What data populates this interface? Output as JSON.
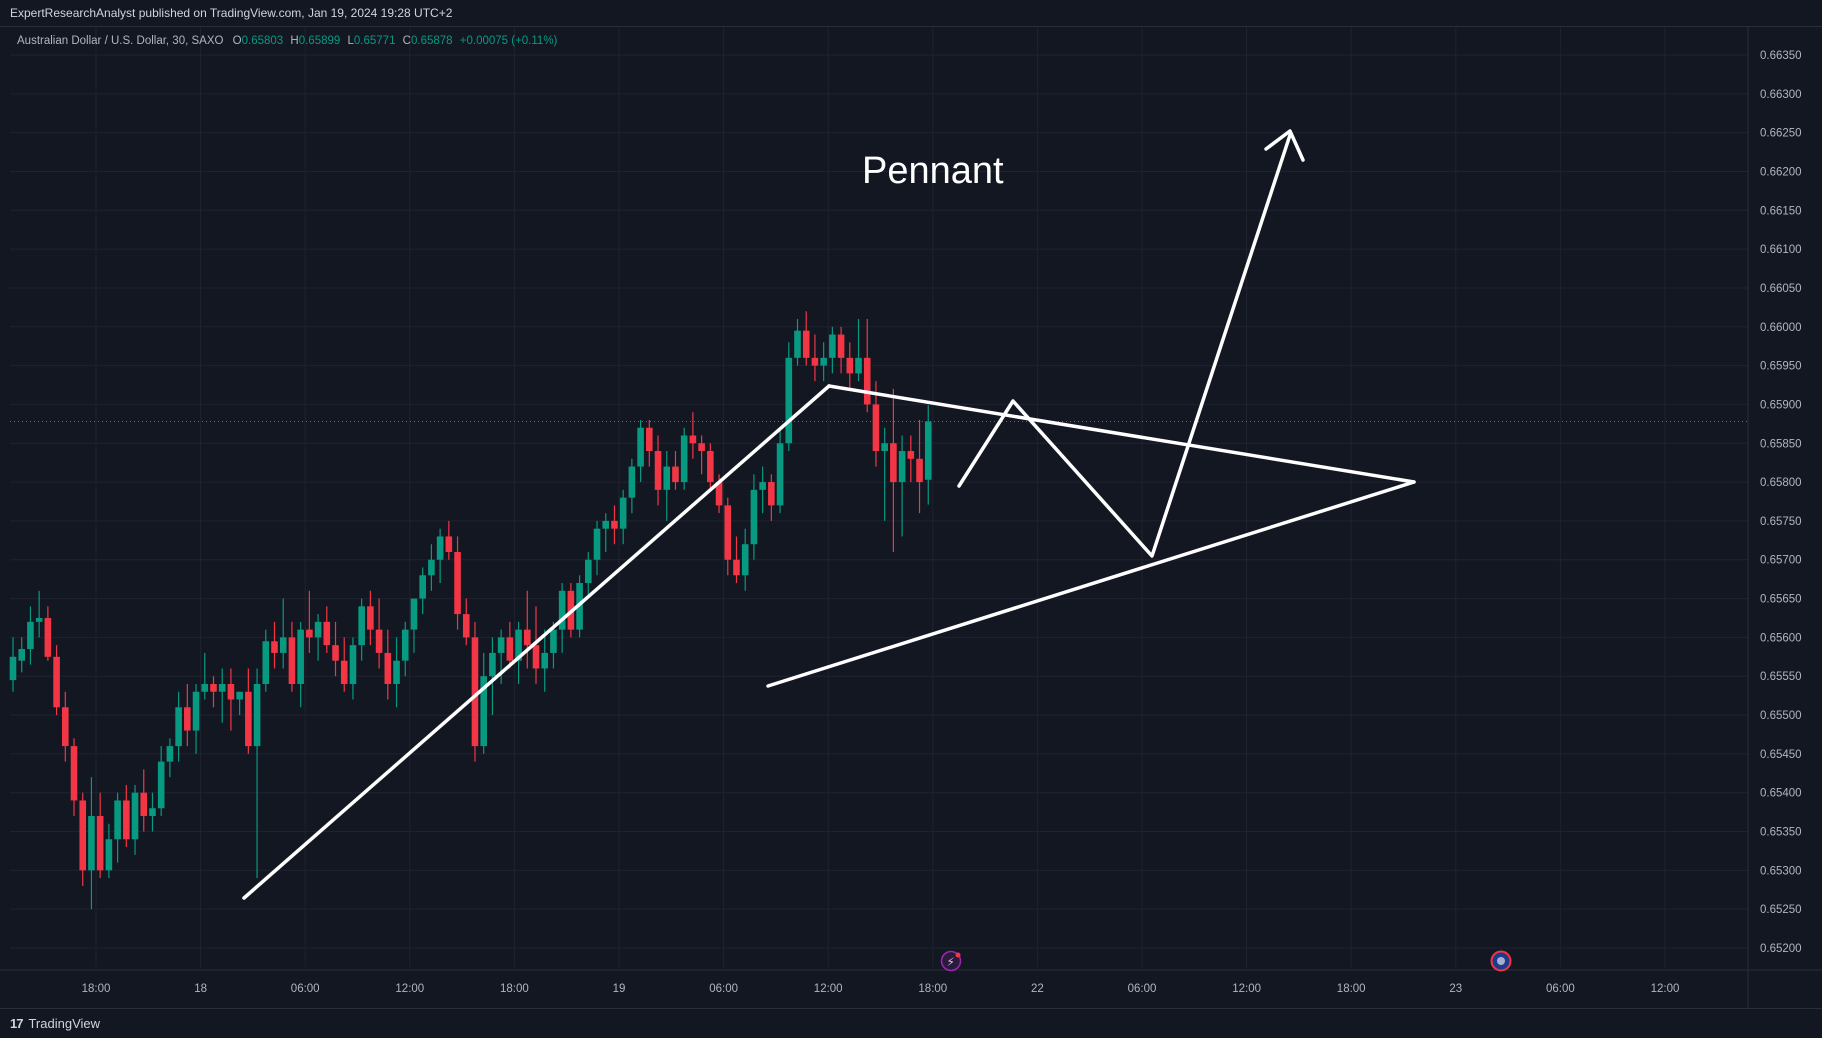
{
  "header": {
    "publisher_line": "ExpertResearchAnalyst published on TradingView.com, Jan 19, 2024 19:28 UTC+2"
  },
  "legend": {
    "symbol": "Australian Dollar / U.S. Dollar, 30, SAXO",
    "o_label": "O",
    "o_value": "0.65803",
    "h_label": "H",
    "h_value": "0.65899",
    "l_label": "L",
    "l_value": "0.65771",
    "c_label": "C",
    "c_value": "0.65878",
    "change": "+0.00075 (+0.11%)"
  },
  "annotation": {
    "text": "Pennant"
  },
  "footer": {
    "brand": "TradingView",
    "logo_glyph": "17"
  },
  "colors": {
    "background": "#131722",
    "up": "#089981",
    "down": "#f23645",
    "grid": "#1f2330",
    "axis_text": "#b2b5be",
    "drawing": "#ffffff",
    "price_line": "#089981"
  },
  "chart_data": {
    "type": "candlestick",
    "title": "",
    "ylim": [
      0.6517,
      0.6637
    ],
    "y_ticks": [
      "0.66350",
      "0.66300",
      "0.66250",
      "0.66200",
      "0.66150",
      "0.66100",
      "0.66050",
      "0.66000",
      "0.65950",
      "0.65900",
      "0.65850",
      "0.65800",
      "0.65750",
      "0.65700",
      "0.65650",
      "0.65600",
      "0.65550",
      "0.65500",
      "0.65450",
      "0.65400",
      "0.65350",
      "0.65300",
      "0.65250",
      "0.65200"
    ],
    "x_ticks": [
      "18:00",
      "18",
      "06:00",
      "12:00",
      "18:00",
      "19",
      "06:00",
      "12:00",
      "18:00",
      "22",
      "06:00",
      "12:00",
      "18:00",
      "23",
      "06:00",
      "12:00"
    ],
    "current_price": 0.65878,
    "grid": true,
    "candles": [
      {
        "o": 0.65545,
        "h": 0.656,
        "l": 0.6553,
        "c": 0.65575
      },
      {
        "o": 0.6557,
        "h": 0.656,
        "l": 0.65555,
        "c": 0.65585
      },
      {
        "o": 0.65585,
        "h": 0.6564,
        "l": 0.65565,
        "c": 0.6562
      },
      {
        "o": 0.6562,
        "h": 0.6566,
        "l": 0.656,
        "c": 0.65625
      },
      {
        "o": 0.65625,
        "h": 0.6564,
        "l": 0.6557,
        "c": 0.65575
      },
      {
        "o": 0.65575,
        "h": 0.6559,
        "l": 0.655,
        "c": 0.6551
      },
      {
        "o": 0.6551,
        "h": 0.6553,
        "l": 0.6544,
        "c": 0.6546
      },
      {
        "o": 0.6546,
        "h": 0.6547,
        "l": 0.6537,
        "c": 0.6539
      },
      {
        "o": 0.6539,
        "h": 0.654,
        "l": 0.6528,
        "c": 0.653
      },
      {
        "o": 0.653,
        "h": 0.6542,
        "l": 0.6525,
        "c": 0.6537
      },
      {
        "o": 0.6537,
        "h": 0.654,
        "l": 0.6529,
        "c": 0.653
      },
      {
        "o": 0.653,
        "h": 0.6536,
        "l": 0.6529,
        "c": 0.6534
      },
      {
        "o": 0.6534,
        "h": 0.654,
        "l": 0.6531,
        "c": 0.6539
      },
      {
        "o": 0.6539,
        "h": 0.6541,
        "l": 0.6533,
        "c": 0.6534
      },
      {
        "o": 0.6534,
        "h": 0.6541,
        "l": 0.6532,
        "c": 0.654
      },
      {
        "o": 0.654,
        "h": 0.6543,
        "l": 0.6535,
        "c": 0.6537
      },
      {
        "o": 0.6537,
        "h": 0.654,
        "l": 0.6535,
        "c": 0.6538
      },
      {
        "o": 0.6538,
        "h": 0.6546,
        "l": 0.6537,
        "c": 0.6544
      },
      {
        "o": 0.6544,
        "h": 0.6547,
        "l": 0.6542,
        "c": 0.6546
      },
      {
        "o": 0.6546,
        "h": 0.6553,
        "l": 0.6544,
        "c": 0.6551
      },
      {
        "o": 0.6551,
        "h": 0.6554,
        "l": 0.6546,
        "c": 0.6548
      },
      {
        "o": 0.6548,
        "h": 0.6554,
        "l": 0.6545,
        "c": 0.6553
      },
      {
        "o": 0.6553,
        "h": 0.6558,
        "l": 0.6552,
        "c": 0.6554
      },
      {
        "o": 0.6554,
        "h": 0.6555,
        "l": 0.6551,
        "c": 0.6553
      },
      {
        "o": 0.6553,
        "h": 0.6556,
        "l": 0.6549,
        "c": 0.6554
      },
      {
        "o": 0.6554,
        "h": 0.6556,
        "l": 0.6548,
        "c": 0.6552
      },
      {
        "o": 0.6552,
        "h": 0.6553,
        "l": 0.655,
        "c": 0.6553
      },
      {
        "o": 0.6553,
        "h": 0.6556,
        "l": 0.6545,
        "c": 0.6546
      },
      {
        "o": 0.6546,
        "h": 0.6556,
        "l": 0.6529,
        "c": 0.6554
      },
      {
        "o": 0.6554,
        "h": 0.6561,
        "l": 0.6553,
        "c": 0.65595
      },
      {
        "o": 0.65595,
        "h": 0.6562,
        "l": 0.6556,
        "c": 0.6558
      },
      {
        "o": 0.6558,
        "h": 0.6565,
        "l": 0.6556,
        "c": 0.656
      },
      {
        "o": 0.656,
        "h": 0.6562,
        "l": 0.6553,
        "c": 0.6554
      },
      {
        "o": 0.6554,
        "h": 0.6562,
        "l": 0.6551,
        "c": 0.6561
      },
      {
        "o": 0.6561,
        "h": 0.6566,
        "l": 0.6558,
        "c": 0.656
      },
      {
        "o": 0.656,
        "h": 0.6563,
        "l": 0.6557,
        "c": 0.6562
      },
      {
        "o": 0.6562,
        "h": 0.6564,
        "l": 0.6558,
        "c": 0.6559
      },
      {
        "o": 0.6559,
        "h": 0.6562,
        "l": 0.6555,
        "c": 0.6557
      },
      {
        "o": 0.6557,
        "h": 0.656,
        "l": 0.6553,
        "c": 0.6554
      },
      {
        "o": 0.6554,
        "h": 0.656,
        "l": 0.6552,
        "c": 0.6559
      },
      {
        "o": 0.6559,
        "h": 0.6565,
        "l": 0.6557,
        "c": 0.6564
      },
      {
        "o": 0.6564,
        "h": 0.6566,
        "l": 0.6559,
        "c": 0.6561
      },
      {
        "o": 0.6561,
        "h": 0.6565,
        "l": 0.6556,
        "c": 0.6558
      },
      {
        "o": 0.6558,
        "h": 0.6561,
        "l": 0.6552,
        "c": 0.6554
      },
      {
        "o": 0.6554,
        "h": 0.656,
        "l": 0.6551,
        "c": 0.6557
      },
      {
        "o": 0.6557,
        "h": 0.6562,
        "l": 0.6555,
        "c": 0.6561
      },
      {
        "o": 0.6561,
        "h": 0.6565,
        "l": 0.6558,
        "c": 0.6565
      },
      {
        "o": 0.6565,
        "h": 0.6569,
        "l": 0.6563,
        "c": 0.6568
      },
      {
        "o": 0.6568,
        "h": 0.6572,
        "l": 0.6566,
        "c": 0.657
      },
      {
        "o": 0.657,
        "h": 0.6574,
        "l": 0.6567,
        "c": 0.6573
      },
      {
        "o": 0.6573,
        "h": 0.6575,
        "l": 0.657,
        "c": 0.6571
      },
      {
        "o": 0.6571,
        "h": 0.6573,
        "l": 0.6561,
        "c": 0.6563
      },
      {
        "o": 0.6563,
        "h": 0.6565,
        "l": 0.6559,
        "c": 0.656
      },
      {
        "o": 0.656,
        "h": 0.6562,
        "l": 0.6544,
        "c": 0.6546
      },
      {
        "o": 0.6546,
        "h": 0.6558,
        "l": 0.6545,
        "c": 0.6555
      },
      {
        "o": 0.6555,
        "h": 0.656,
        "l": 0.655,
        "c": 0.6558
      },
      {
        "o": 0.6558,
        "h": 0.6561,
        "l": 0.6554,
        "c": 0.656
      },
      {
        "o": 0.656,
        "h": 0.6562,
        "l": 0.6556,
        "c": 0.6557
      },
      {
        "o": 0.6557,
        "h": 0.6562,
        "l": 0.6554,
        "c": 0.6561
      },
      {
        "o": 0.6561,
        "h": 0.6566,
        "l": 0.6556,
        "c": 0.6559
      },
      {
        "o": 0.6559,
        "h": 0.6564,
        "l": 0.6554,
        "c": 0.6556
      },
      {
        "o": 0.6556,
        "h": 0.6561,
        "l": 0.6553,
        "c": 0.6558
      },
      {
        "o": 0.6558,
        "h": 0.6562,
        "l": 0.6556,
        "c": 0.6561
      },
      {
        "o": 0.6561,
        "h": 0.6567,
        "l": 0.6558,
        "c": 0.6566
      },
      {
        "o": 0.6566,
        "h": 0.6567,
        "l": 0.656,
        "c": 0.6561
      },
      {
        "o": 0.6561,
        "h": 0.6568,
        "l": 0.656,
        "c": 0.6567
      },
      {
        "o": 0.6567,
        "h": 0.6571,
        "l": 0.6565,
        "c": 0.657
      },
      {
        "o": 0.657,
        "h": 0.6575,
        "l": 0.6568,
        "c": 0.6574
      },
      {
        "o": 0.6574,
        "h": 0.6576,
        "l": 0.6571,
        "c": 0.6575
      },
      {
        "o": 0.6575,
        "h": 0.6577,
        "l": 0.6572,
        "c": 0.6574
      },
      {
        "o": 0.6574,
        "h": 0.6579,
        "l": 0.6572,
        "c": 0.6578
      },
      {
        "o": 0.6578,
        "h": 0.6583,
        "l": 0.6576,
        "c": 0.6582
      },
      {
        "o": 0.6582,
        "h": 0.6588,
        "l": 0.658,
        "c": 0.6587
      },
      {
        "o": 0.6587,
        "h": 0.6588,
        "l": 0.6582,
        "c": 0.6584
      },
      {
        "o": 0.6584,
        "h": 0.6586,
        "l": 0.6577,
        "c": 0.6579
      },
      {
        "o": 0.6579,
        "h": 0.6584,
        "l": 0.6575,
        "c": 0.6582
      },
      {
        "o": 0.6582,
        "h": 0.6584,
        "l": 0.6579,
        "c": 0.658
      },
      {
        "o": 0.658,
        "h": 0.6587,
        "l": 0.6579,
        "c": 0.6586
      },
      {
        "o": 0.6586,
        "h": 0.6589,
        "l": 0.6583,
        "c": 0.6585
      },
      {
        "o": 0.6585,
        "h": 0.6586,
        "l": 0.6581,
        "c": 0.6584
      },
      {
        "o": 0.6584,
        "h": 0.6585,
        "l": 0.6579,
        "c": 0.658
      },
      {
        "o": 0.658,
        "h": 0.6581,
        "l": 0.6576,
        "c": 0.6577
      },
      {
        "o": 0.6577,
        "h": 0.6578,
        "l": 0.6568,
        "c": 0.657
      },
      {
        "o": 0.657,
        "h": 0.6573,
        "l": 0.6567,
        "c": 0.6568
      },
      {
        "o": 0.6568,
        "h": 0.6574,
        "l": 0.6566,
        "c": 0.6572
      },
      {
        "o": 0.6572,
        "h": 0.6581,
        "l": 0.657,
        "c": 0.6579
      },
      {
        "o": 0.6579,
        "h": 0.6582,
        "l": 0.6576,
        "c": 0.658
      },
      {
        "o": 0.658,
        "h": 0.6581,
        "l": 0.6575,
        "c": 0.6577
      },
      {
        "o": 0.6577,
        "h": 0.6587,
        "l": 0.6576,
        "c": 0.6585
      },
      {
        "o": 0.6585,
        "h": 0.6598,
        "l": 0.6584,
        "c": 0.6596
      },
      {
        "o": 0.6596,
        "h": 0.6601,
        "l": 0.6595,
        "c": 0.65995
      },
      {
        "o": 0.65995,
        "h": 0.6602,
        "l": 0.6595,
        "c": 0.6596
      },
      {
        "o": 0.6596,
        "h": 0.6599,
        "l": 0.6593,
        "c": 0.6595
      },
      {
        "o": 0.6595,
        "h": 0.6598,
        "l": 0.6593,
        "c": 0.6596
      },
      {
        "o": 0.6596,
        "h": 0.66,
        "l": 0.6594,
        "c": 0.6599
      },
      {
        "o": 0.6599,
        "h": 0.66,
        "l": 0.6594,
        "c": 0.6596
      },
      {
        "o": 0.6596,
        "h": 0.6598,
        "l": 0.6592,
        "c": 0.6594
      },
      {
        "o": 0.6594,
        "h": 0.6601,
        "l": 0.6593,
        "c": 0.6596
      },
      {
        "o": 0.6596,
        "h": 0.6601,
        "l": 0.6589,
        "c": 0.659
      },
      {
        "o": 0.659,
        "h": 0.6593,
        "l": 0.6582,
        "c": 0.6584
      },
      {
        "o": 0.6584,
        "h": 0.6587,
        "l": 0.6575,
        "c": 0.6585
      },
      {
        "o": 0.6585,
        "h": 0.6592,
        "l": 0.6571,
        "c": 0.658
      },
      {
        "o": 0.658,
        "h": 0.6586,
        "l": 0.6573,
        "c": 0.6584
      },
      {
        "o": 0.6584,
        "h": 0.6586,
        "l": 0.658,
        "c": 0.6583
      },
      {
        "o": 0.6583,
        "h": 0.6588,
        "l": 0.6576,
        "c": 0.658
      },
      {
        "o": 0.65803,
        "h": 0.65899,
        "l": 0.65771,
        "c": 0.65878
      }
    ],
    "annotations": [
      "Pennant"
    ]
  }
}
